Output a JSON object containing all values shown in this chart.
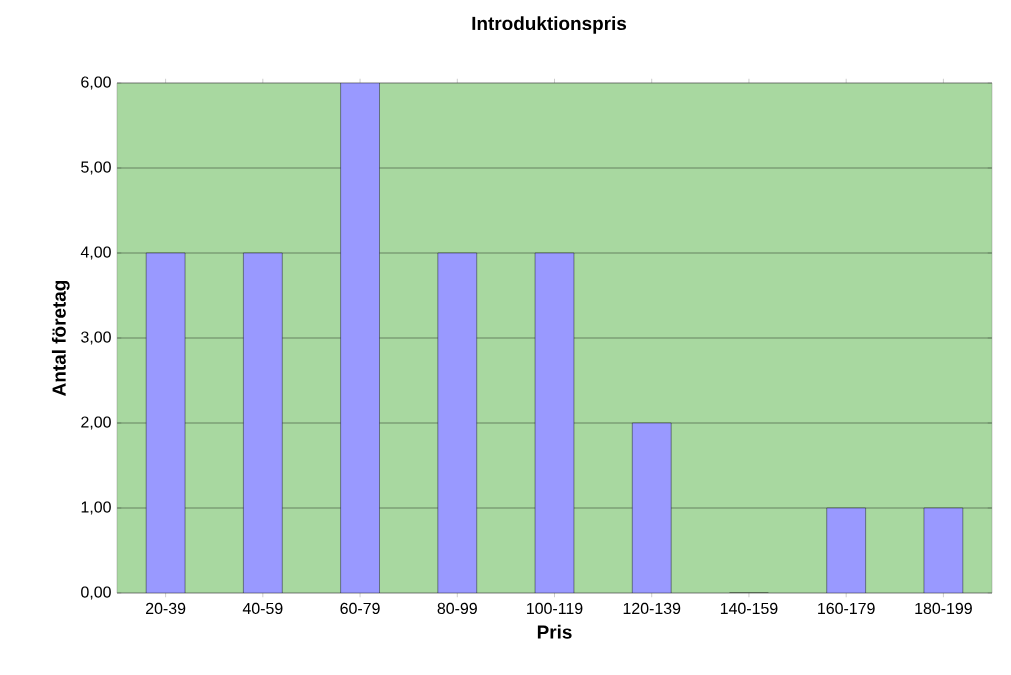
{
  "chart_data": {
    "type": "bar",
    "title": "Introduktionspris",
    "xlabel": "Pris",
    "ylabel": "Antal företag",
    "categories": [
      "20-39",
      "40-59",
      "60-79",
      "80-99",
      "100-119",
      "120-139",
      "140-159",
      "160-179",
      "180-199"
    ],
    "values": [
      4,
      4,
      6,
      4,
      4,
      2,
      0,
      1,
      1
    ],
    "color": "#9999ff",
    "ylim": [
      0,
      6
    ],
    "yticks": [
      {
        "value": 0,
        "label": "0,00"
      },
      {
        "value": 1,
        "label": "1,00"
      },
      {
        "value": 2,
        "label": "2,00"
      },
      {
        "value": 3,
        "label": "3,00"
      },
      {
        "value": 4,
        "label": "4,00"
      },
      {
        "value": 5,
        "label": "5,00"
      },
      {
        "value": 6,
        "label": "6,00"
      }
    ],
    "grid": "y"
  }
}
